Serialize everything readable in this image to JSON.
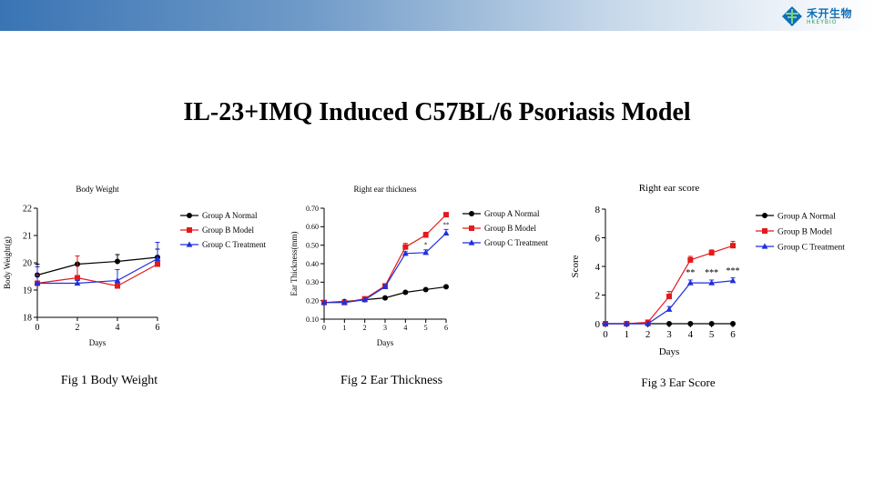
{
  "header": {
    "logo_text": "禾开生物",
    "logo_sub": "HKEYBIO",
    "title": "IL-23+IMQ Induced C57BL/6 Psoriasis Model"
  },
  "captions": {
    "fig1": "Fig 1 Body Weight",
    "fig2": "Fig 2 Ear Thickness",
    "fig3": "Fig 3  Ear Score"
  },
  "colors": {
    "A": "#000000",
    "B": "#e31a1c",
    "C": "#1f2fe0"
  },
  "chart_data": [
    {
      "type": "line",
      "title": "Body Weight",
      "xlabel": "Days",
      "ylabel": "Body Weight(g)",
      "x": [
        0,
        2,
        4,
        6
      ],
      "xticks": [
        "0",
        "2",
        "4",
        "6"
      ],
      "xlim": [
        0,
        6
      ],
      "ylim": [
        18,
        22
      ],
      "yticks": [
        "18",
        "19",
        "20",
        "21",
        "22"
      ],
      "series": [
        {
          "name": "Group A Normal",
          "key": "A",
          "marker": "circle",
          "values": [
            19.55,
            19.95,
            20.05,
            20.2
          ],
          "err": [
            0.4,
            0.3,
            0.25,
            0.3
          ]
        },
        {
          "name": "Group B Model",
          "key": "B",
          "marker": "square",
          "values": [
            19.25,
            19.45,
            19.15,
            19.95
          ],
          "err": [
            0.3,
            0.8,
            0.1,
            0.1
          ]
        },
        {
          "name": "Group C Treatment",
          "key": "C",
          "marker": "triangle",
          "values": [
            19.25,
            19.25,
            19.35,
            20.15
          ],
          "err": [
            0.6,
            0.1,
            0.4,
            0.6
          ]
        }
      ],
      "annotations": []
    },
    {
      "type": "line",
      "title": "Right ear thickness",
      "xlabel": "Days",
      "ylabel": "Ear Thickness(mm)",
      "x": [
        0,
        1,
        2,
        3,
        4,
        5,
        6
      ],
      "xticks": [
        "0",
        "1",
        "2",
        "3",
        "4",
        "5",
        "6"
      ],
      "xlim": [
        0,
        6
      ],
      "ylim": [
        0.1,
        0.7
      ],
      "yticks": [
        "0.10",
        "0.20",
        "0.30",
        "0.40",
        "0.50",
        "0.60",
        "0.70"
      ],
      "series": [
        {
          "name": "Group A Normal",
          "key": "A",
          "marker": "circle",
          "values": [
            0.19,
            0.195,
            0.205,
            0.215,
            0.245,
            0.26,
            0.275
          ],
          "err": [
            0,
            0,
            0,
            0,
            0,
            0,
            0
          ]
        },
        {
          "name": "Group B Model",
          "key": "B",
          "marker": "square",
          "values": [
            0.19,
            0.19,
            0.21,
            0.28,
            0.49,
            0.555,
            0.665
          ],
          "err": [
            0,
            0,
            0,
            0.01,
            0.02,
            0.015,
            0.01
          ]
        },
        {
          "name": "Group C Treatment",
          "key": "C",
          "marker": "triangle",
          "values": [
            0.19,
            0.19,
            0.205,
            0.275,
            0.455,
            0.46,
            0.565
          ],
          "err": [
            0,
            0,
            0,
            0.01,
            0.01,
            0.015,
            0.02
          ]
        }
      ],
      "annotations": [
        {
          "x": 5,
          "y": 0.49,
          "text": "*"
        },
        {
          "x": 6,
          "y": 0.6,
          "text": "**"
        }
      ]
    },
    {
      "type": "line",
      "title": "Right ear score",
      "xlabel": "Days",
      "ylabel": "Score",
      "x": [
        0,
        1,
        2,
        3,
        4,
        5,
        6
      ],
      "xticks": [
        "0",
        "1",
        "2",
        "3",
        "4",
        "5",
        "6"
      ],
      "xlim": [
        0,
        6
      ],
      "ylim": [
        0,
        8
      ],
      "yticks": [
        "0",
        "2",
        "4",
        "6",
        "8"
      ],
      "series": [
        {
          "name": "Group A Normal",
          "key": "A",
          "marker": "circle",
          "values": [
            0,
            0,
            0,
            0,
            0,
            0,
            0
          ],
          "err": [
            0,
            0,
            0,
            0,
            0,
            0,
            0
          ]
        },
        {
          "name": "Group B Model",
          "key": "B",
          "marker": "square",
          "values": [
            0,
            0,
            0.1,
            1.9,
            4.45,
            4.95,
            5.45
          ],
          "err": [
            0,
            0,
            0,
            0.35,
            0.25,
            0.2,
            0.3
          ]
        },
        {
          "name": "Group C Treatment",
          "key": "C",
          "marker": "triangle",
          "values": [
            0,
            0,
            0,
            1.0,
            2.85,
            2.85,
            3.0
          ],
          "err": [
            0,
            0,
            0,
            0.2,
            0.2,
            0.2,
            0.2
          ]
        }
      ],
      "annotations": [
        {
          "x": 4,
          "y": 3.35,
          "text": "**"
        },
        {
          "x": 5,
          "y": 3.35,
          "text": "***"
        },
        {
          "x": 6,
          "y": 3.5,
          "text": "***"
        }
      ]
    }
  ]
}
